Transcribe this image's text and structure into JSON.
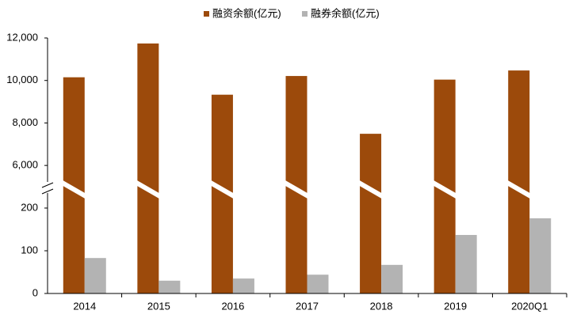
{
  "chart_data": {
    "type": "bar",
    "categories": [
      "2014",
      "2015",
      "2016",
      "2017",
      "2018",
      "2019",
      "2020Q1"
    ],
    "series": [
      {
        "name": "融资余额(亿元)",
        "color": "#9c4a0b",
        "values": [
          10150,
          11740,
          9330,
          10210,
          7490,
          10040,
          10470
        ]
      },
      {
        "name": "融券余额(亿元)",
        "color": "#b3b3b3",
        "values": [
          83,
          30,
          35,
          44,
          67,
          137,
          176
        ]
      }
    ],
    "ylim": [
      0,
      12000
    ],
    "y_break": [
      250,
      5000
    ],
    "yticks": [
      0,
      100,
      200,
      {
        "value": 6000,
        "label": "6,000"
      },
      {
        "value": 8000,
        "label": "8,000"
      },
      {
        "value": 10000,
        "label": "10,000"
      },
      {
        "value": 12000,
        "label": "12,000"
      }
    ],
    "legend": "top"
  }
}
